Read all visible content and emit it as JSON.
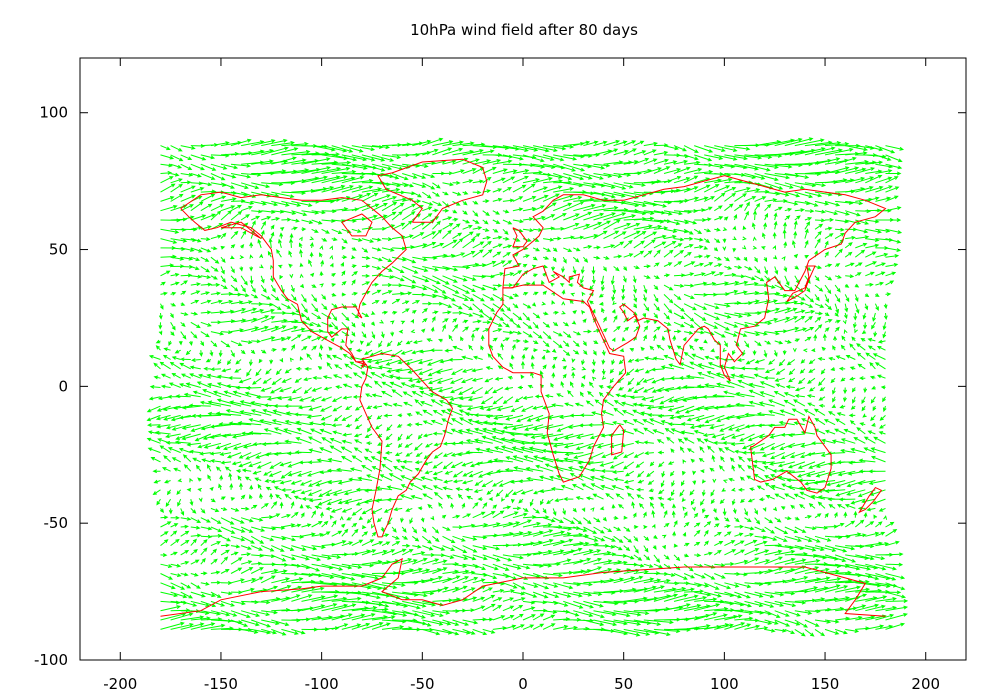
{
  "chart_data": {
    "type": "vector-field",
    "title": "10hPa wind field after 80 days",
    "xlabel": "",
    "ylabel": "",
    "xlim": [
      -220,
      220
    ],
    "ylim": [
      -100,
      120
    ],
    "xticks": [
      -200,
      -150,
      -100,
      -50,
      0,
      50,
      100,
      150,
      200
    ],
    "yticks": [
      -100,
      -50,
      0,
      50,
      100
    ],
    "vector_color": "#00ff00",
    "coastline_color": "#ff0000",
    "grid": false,
    "field_x_range": [
      -180,
      180
    ],
    "field_y_range": [
      -90,
      90
    ],
    "bands": [
      {
        "lat": 85,
        "u": 9,
        "v": 0
      },
      {
        "lat": 78,
        "u": 8,
        "v": 0
      },
      {
        "lat": 70,
        "u": 7,
        "v": 0.5
      },
      {
        "lat": 60,
        "u": 5,
        "v": 1
      },
      {
        "lat": 50,
        "u": 3,
        "v": 1
      },
      {
        "lat": 40,
        "u": 3,
        "v": -1
      },
      {
        "lat": 30,
        "u": 3,
        "v": -1
      },
      {
        "lat": 20,
        "u": 3,
        "v": 0
      },
      {
        "lat": 10,
        "u": -3,
        "v": 0
      },
      {
        "lat": 0,
        "u": -4,
        "v": 0
      },
      {
        "lat": -10,
        "u": -6,
        "v": 0
      },
      {
        "lat": -20,
        "u": -6,
        "v": 0
      },
      {
        "lat": -30,
        "u": -5,
        "v": 0
      },
      {
        "lat": -40,
        "u": -4,
        "v": 0
      },
      {
        "lat": -50,
        "u": 4,
        "v": 0
      },
      {
        "lat": -60,
        "u": 6,
        "v": 0
      },
      {
        "lat": -70,
        "u": 8,
        "v": 0
      },
      {
        "lat": -80,
        "u": 9,
        "v": 0
      },
      {
        "lat": -88,
        "u": 8,
        "v": 0
      }
    ],
    "coastlines": [
      [
        [
          -170,
          65
        ],
        [
          -160,
          70
        ],
        [
          -150,
          71
        ],
        [
          -140,
          69
        ],
        [
          -130,
          70
        ],
        [
          -120,
          69
        ],
        [
          -110,
          68
        ],
        [
          -100,
          68
        ],
        [
          -90,
          69
        ],
        [
          -80,
          68
        ],
        [
          -70,
          62
        ],
        [
          -65,
          58
        ],
        [
          -60,
          55
        ],
        [
          -58,
          50
        ],
        [
          -65,
          45
        ],
        [
          -70,
          42
        ],
        [
          -75,
          38
        ],
        [
          -78,
          34
        ],
        [
          -81,
          30
        ],
        [
          -82,
          26
        ],
        [
          -80,
          25
        ],
        [
          -83,
          29
        ],
        [
          -90,
          29
        ],
        [
          -95,
          28
        ],
        [
          -97,
          25
        ],
        [
          -97,
          20
        ],
        [
          -95,
          18
        ],
        [
          -90,
          21
        ],
        [
          -87,
          21
        ],
        [
          -88,
          15
        ],
        [
          -85,
          12
        ],
        [
          -83,
          9
        ],
        [
          -79,
          9
        ],
        [
          -80,
          7
        ],
        [
          -78,
          8
        ],
        [
          -83,
          9
        ],
        [
          -86,
          12
        ],
        [
          -90,
          14
        ],
        [
          -95,
          16
        ],
        [
          -105,
          20
        ],
        [
          -110,
          24
        ],
        [
          -112,
          30
        ],
        [
          -117,
          32
        ],
        [
          -120,
          35
        ],
        [
          -124,
          40
        ],
        [
          -124,
          46
        ],
        [
          -125,
          50
        ],
        [
          -130,
          55
        ],
        [
          -135,
          58
        ],
        [
          -145,
          60
        ],
        [
          -152,
          58
        ],
        [
          -158,
          57
        ],
        [
          -163,
          60
        ],
        [
          -166,
          62
        ],
        [
          -170,
          65
        ]
      ],
      [
        [
          -80,
          10
        ],
        [
          -75,
          11
        ],
        [
          -70,
          12
        ],
        [
          -62,
          11
        ],
        [
          -55,
          6
        ],
        [
          -50,
          2
        ],
        [
          -45,
          -2
        ],
        [
          -38,
          -5
        ],
        [
          -35,
          -8
        ],
        [
          -37,
          -12
        ],
        [
          -39,
          -18
        ],
        [
          -41,
          -22
        ],
        [
          -45,
          -24
        ],
        [
          -48,
          -27
        ],
        [
          -52,
          -32
        ],
        [
          -56,
          -35
        ],
        [
          -58,
          -38
        ],
        [
          -62,
          -40
        ],
        [
          -65,
          -45
        ],
        [
          -67,
          -50
        ],
        [
          -69,
          -53
        ],
        [
          -70,
          -55
        ],
        [
          -72,
          -55
        ],
        [
          -74,
          -50
        ],
        [
          -75,
          -45
        ],
        [
          -73,
          -38
        ],
        [
          -71,
          -30
        ],
        [
          -70,
          -20
        ],
        [
          -75,
          -15
        ],
        [
          -78,
          -10
        ],
        [
          -81,
          -5
        ],
        [
          -80,
          0
        ],
        [
          -78,
          3
        ],
        [
          -77,
          7
        ],
        [
          -80,
          10
        ]
      ],
      [
        [
          -10,
          36
        ],
        [
          -6,
          36
        ],
        [
          0,
          37
        ],
        [
          10,
          37
        ],
        [
          20,
          32
        ],
        [
          30,
          31
        ],
        [
          33,
          29
        ],
        [
          35,
          25
        ],
        [
          38,
          20
        ],
        [
          43,
          12
        ],
        [
          50,
          11
        ],
        [
          51,
          5
        ],
        [
          45,
          0
        ],
        [
          40,
          -5
        ],
        [
          39,
          -10
        ],
        [
          40,
          -15
        ],
        [
          35,
          -22
        ],
        [
          33,
          -27
        ],
        [
          28,
          -33
        ],
        [
          20,
          -35
        ],
        [
          18,
          -32
        ],
        [
          15,
          -25
        ],
        [
          12,
          -17
        ],
        [
          13,
          -10
        ],
        [
          9,
          -2
        ],
        [
          9,
          4
        ],
        [
          5,
          5
        ],
        [
          0,
          5
        ],
        [
          -5,
          5
        ],
        [
          -10,
          7
        ],
        [
          -15,
          11
        ],
        [
          -17,
          15
        ],
        [
          -17,
          21
        ],
        [
          -13,
          27
        ],
        [
          -10,
          30
        ],
        [
          -10,
          36
        ]
      ],
      [
        [
          -10,
          36
        ],
        [
          -9,
          43
        ],
        [
          -2,
          44
        ],
        [
          -5,
          48
        ],
        [
          0,
          50
        ],
        [
          5,
          53
        ],
        [
          8,
          55
        ],
        [
          10,
          58
        ],
        [
          5,
          62
        ],
        [
          10,
          64
        ],
        [
          15,
          68
        ],
        [
          20,
          70
        ],
        [
          30,
          70
        ],
        [
          40,
          68
        ],
        [
          50,
          68
        ],
        [
          60,
          70
        ],
        [
          70,
          72
        ],
        [
          80,
          73
        ],
        [
          90,
          75
        ],
        [
          100,
          77
        ],
        [
          110,
          75
        ],
        [
          120,
          73
        ],
        [
          130,
          71
        ],
        [
          140,
          72
        ],
        [
          150,
          71
        ],
        [
          160,
          70
        ],
        [
          170,
          68
        ],
        [
          180,
          65
        ],
        [
          175,
          62
        ],
        [
          165,
          60
        ],
        [
          160,
          56
        ],
        [
          158,
          52
        ],
        [
          150,
          50
        ],
        [
          142,
          46
        ],
        [
          140,
          42
        ],
        [
          135,
          35
        ],
        [
          130,
          35
        ],
        [
          125,
          40
        ],
        [
          121,
          38
        ],
        [
          122,
          32
        ],
        [
          120,
          25
        ],
        [
          115,
          22
        ],
        [
          108,
          21
        ],
        [
          106,
          15
        ],
        [
          109,
          12
        ],
        [
          105,
          9
        ],
        [
          102,
          12
        ],
        [
          100,
          7
        ],
        [
          103,
          2
        ],
        [
          100,
          4
        ],
        [
          98,
          8
        ],
        [
          98,
          15
        ],
        [
          95,
          17
        ],
        [
          92,
          21
        ],
        [
          90,
          22
        ],
        [
          87,
          21
        ],
        [
          80,
          15
        ],
        [
          78,
          8
        ],
        [
          76,
          10
        ],
        [
          73,
          17
        ],
        [
          72,
          21
        ],
        [
          67,
          24
        ],
        [
          60,
          25
        ],
        [
          57,
          24
        ],
        [
          56,
          26
        ],
        [
          52,
          24
        ],
        [
          50,
          27
        ],
        [
          48,
          29
        ],
        [
          50,
          30
        ],
        [
          55,
          27
        ],
        [
          58,
          22
        ],
        [
          56,
          18
        ],
        [
          52,
          16
        ],
        [
          45,
          13
        ],
        [
          43,
          14
        ],
        [
          38,
          22
        ],
        [
          34,
          28
        ],
        [
          32,
          31
        ],
        [
          35,
          35
        ],
        [
          30,
          36
        ],
        [
          27,
          38
        ],
        [
          28,
          41
        ],
        [
          23,
          40
        ],
        [
          23,
          38
        ],
        [
          20,
          40
        ],
        [
          15,
          42
        ],
        [
          18,
          40
        ],
        [
          13,
          38
        ],
        [
          10,
          44
        ],
        [
          5,
          43
        ],
        [
          0,
          41
        ],
        [
          -5,
          36
        ],
        [
          -10,
          36
        ]
      ],
      [
        [
          113,
          -22
        ],
        [
          115,
          -34
        ],
        [
          118,
          -35
        ],
        [
          124,
          -34
        ],
        [
          131,
          -31
        ],
        [
          138,
          -35
        ],
        [
          141,
          -38
        ],
        [
          146,
          -39
        ],
        [
          150,
          -37
        ],
        [
          153,
          -30
        ],
        [
          153,
          -25
        ],
        [
          148,
          -20
        ],
        [
          146,
          -18
        ],
        [
          145,
          -15
        ],
        [
          142,
          -11
        ],
        [
          141,
          -14
        ],
        [
          140,
          -17
        ],
        [
          136,
          -12
        ],
        [
          132,
          -12
        ],
        [
          130,
          -15
        ],
        [
          125,
          -15
        ],
        [
          122,
          -18
        ],
        [
          114,
          -22
        ],
        [
          113,
          -22
        ]
      ],
      [
        [
          -180,
          -84
        ],
        [
          -160,
          -82
        ],
        [
          -150,
          -78
        ],
        [
          -130,
          -75
        ],
        [
          -110,
          -74
        ],
        [
          -100,
          -73
        ],
        [
          -80,
          -73
        ],
        [
          -70,
          -70
        ],
        [
          -65,
          -65
        ],
        [
          -60,
          -63
        ],
        [
          -62,
          -70
        ],
        [
          -70,
          -75
        ],
        [
          -60,
          -78
        ],
        [
          -50,
          -78
        ],
        [
          -40,
          -80
        ],
        [
          -30,
          -78
        ],
        [
          -20,
          -73
        ],
        [
          0,
          -70
        ],
        [
          20,
          -70
        ],
        [
          40,
          -68
        ],
        [
          60,
          -67
        ],
        [
          80,
          -66
        ],
        [
          100,
          -66
        ],
        [
          120,
          -66
        ],
        [
          140,
          -66
        ],
        [
          160,
          -70
        ],
        [
          170,
          -72
        ],
        [
          165,
          -78
        ],
        [
          160,
          -83
        ],
        [
          180,
          -84
        ]
      ],
      [
        [
          -55,
          60
        ],
        [
          -45,
          60
        ],
        [
          -40,
          65
        ],
        [
          -30,
          68
        ],
        [
          -20,
          70
        ],
        [
          -18,
          75
        ],
        [
          -20,
          80
        ],
        [
          -30,
          83
        ],
        [
          -50,
          82
        ],
        [
          -65,
          78
        ],
        [
          -72,
          77
        ],
        [
          -68,
          72
        ],
        [
          -55,
          68
        ],
        [
          -50,
          65
        ],
        [
          -55,
          60
        ]
      ],
      [
        [
          -5,
          58
        ],
        [
          -3,
          55
        ],
        [
          -5,
          51
        ],
        [
          0,
          51
        ],
        [
          2,
          53
        ],
        [
          -2,
          57
        ],
        [
          -5,
          58
        ]
      ],
      [
        [
          131,
          31
        ],
        [
          134,
          34
        ],
        [
          140,
          36
        ],
        [
          142,
          40
        ],
        [
          141,
          44
        ],
        [
          145,
          44
        ],
        [
          142,
          39
        ],
        [
          140,
          35
        ],
        [
          136,
          33
        ],
        [
          131,
          31
        ]
      ],
      [
        [
          -150,
          58
        ],
        [
          -140,
          60
        ],
        [
          -135,
          57
        ],
        [
          -130,
          54
        ],
        [
          -140,
          58
        ],
        [
          -150,
          58
        ]
      ],
      [
        [
          172,
          -40
        ],
        [
          175,
          -37
        ],
        [
          178,
          -38
        ],
        [
          174,
          -42
        ],
        [
          170,
          -45
        ],
        [
          167,
          -46
        ],
        [
          172,
          -40
        ]
      ],
      [
        [
          48,
          -14
        ],
        [
          50,
          -16
        ],
        [
          49,
          -24
        ],
        [
          44,
          -25
        ],
        [
          44,
          -18
        ],
        [
          48,
          -14
        ]
      ],
      [
        [
          -90,
          60
        ],
        [
          -80,
          63
        ],
        [
          -75,
          60
        ],
        [
          -78,
          55
        ],
        [
          -85,
          55
        ],
        [
          -90,
          60
        ]
      ]
    ]
  }
}
